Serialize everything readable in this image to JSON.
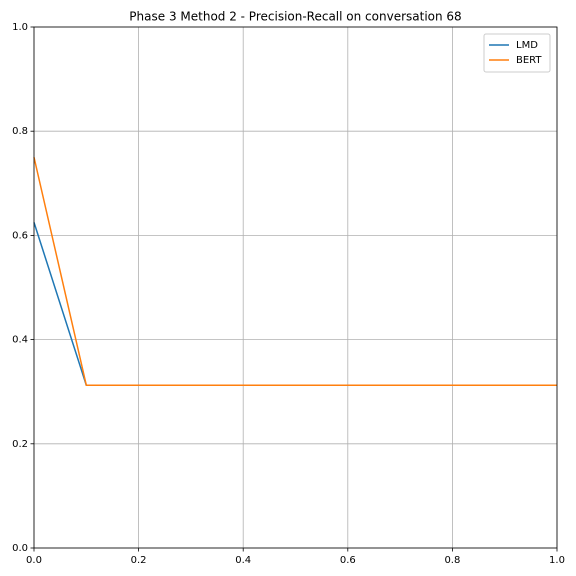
{
  "chart_data": {
    "type": "line",
    "title": "Phase 3 Method 2 - Precision-Recall on conversation 68",
    "x": [
      0,
      0.1,
      1.0
    ],
    "series": [
      {
        "name": "LMD",
        "color": "#1f77b4",
        "values": [
          0.625,
          0.3125,
          0.3125
        ]
      },
      {
        "name": "BERT",
        "color": "#ff7f0e",
        "values": [
          0.75,
          0.3125,
          0.3125
        ]
      }
    ],
    "xlim": [
      0,
      1
    ],
    "ylim": [
      0,
      1
    ],
    "xticks": [
      {
        "value": 0,
        "label": "0.0"
      },
      {
        "value": 0.2,
        "label": "0.2"
      },
      {
        "value": 0.4,
        "label": "0.4"
      },
      {
        "value": 0.6,
        "label": "0.6"
      },
      {
        "value": 0.8,
        "label": "0.8"
      },
      {
        "value": 1,
        "label": "1.0"
      }
    ],
    "yticks": [
      {
        "value": 0,
        "label": "0.0"
      },
      {
        "value": 0.2,
        "label": "0.2"
      },
      {
        "value": 0.4,
        "label": "0.4"
      },
      {
        "value": 0.6,
        "label": "0.6"
      },
      {
        "value": 0.8,
        "label": "0.8"
      },
      {
        "value": 1,
        "label": "1.0"
      }
    ],
    "grid": true,
    "legend": "upper-right"
  }
}
